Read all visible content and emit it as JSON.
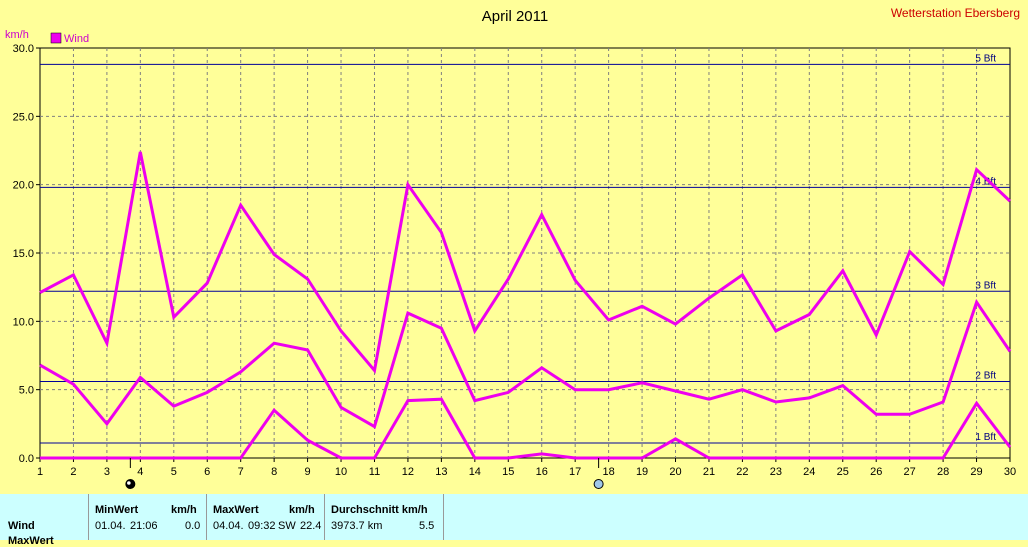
{
  "chart_data": {
    "type": "line",
    "title": "April 2011",
    "station": "Wetterstation Ebersberg",
    "ylabel": "km/h",
    "legend": "Wind",
    "ylim": [
      0,
      30
    ],
    "yticks": [
      "0.0",
      "5.0",
      "10.0",
      "15.0",
      "20.0",
      "25.0",
      "30.0"
    ],
    "x": [
      1,
      2,
      3,
      4,
      5,
      6,
      7,
      8,
      9,
      10,
      11,
      12,
      13,
      14,
      15,
      16,
      17,
      18,
      19,
      20,
      21,
      22,
      23,
      24,
      25,
      26,
      27,
      28,
      29,
      30
    ],
    "series": [
      {
        "name": "",
        "values": [
          12.1,
          13.4,
          8.4,
          22.4,
          10.3,
          12.8,
          18.5,
          14.9,
          13.1,
          9.3,
          6.4,
          20.0,
          16.5,
          9.3,
          13.1,
          17.8,
          13.0,
          10.1,
          11.1,
          9.8,
          11.7,
          13.4,
          9.3,
          10.5,
          13.7,
          9.0,
          15.1,
          12.7,
          21.1,
          18.8
        ]
      },
      {
        "name": "",
        "values": [
          6.8,
          5.4,
          2.5,
          5.9,
          3.8,
          4.8,
          6.3,
          8.4,
          7.9,
          3.7,
          2.3,
          10.6,
          9.5,
          4.2,
          4.8,
          6.6,
          5.0,
          5.0,
          5.5,
          4.9,
          4.3,
          5.0,
          4.1,
          4.4,
          5.3,
          3.2,
          3.2,
          4.1,
          11.4,
          7.8
        ]
      },
      {
        "name": "",
        "values": [
          0,
          0,
          0,
          0,
          0,
          0,
          0,
          3.5,
          1.3,
          0,
          0,
          4.2,
          4.3,
          0,
          0,
          0.3,
          0,
          0,
          0,
          1.4,
          0,
          0,
          0,
          0,
          0,
          0,
          0,
          0,
          4.0,
          0.8
        ]
      }
    ],
    "reference_lines": [
      {
        "label": "1 Bft",
        "value": 1.1
      },
      {
        "label": "2 Bft",
        "value": 5.6
      },
      {
        "label": "3 Bft",
        "value": 12.2
      },
      {
        "label": "4 Bft",
        "value": 19.8
      },
      {
        "label": "5 Bft",
        "value": 28.8
      }
    ],
    "moon_markers": [
      {
        "day": 4,
        "phase": "new"
      },
      {
        "day": 18,
        "phase": "full"
      }
    ],
    "grid": true,
    "colors": {
      "series": "#ee00ee",
      "reference": "#000099",
      "grid": "#808080",
      "background": "#ffff99",
      "station": "#cc0000"
    }
  },
  "stats": {
    "row_label": "Wind",
    "row2_label": "MaxWert",
    "min": {
      "header": "MinWert",
      "unit": "km/h",
      "date": "01.04.",
      "time": "21:06",
      "value": "0.0"
    },
    "max": {
      "header": "MaxWert",
      "unit": "km/h",
      "date": "04.04.",
      "time": "09:32",
      "dir": "SW",
      "value": "22.4"
    },
    "avg": {
      "header": "Durchschnitt km/h",
      "distance": "3973.7 km",
      "value": "5.5"
    }
  }
}
